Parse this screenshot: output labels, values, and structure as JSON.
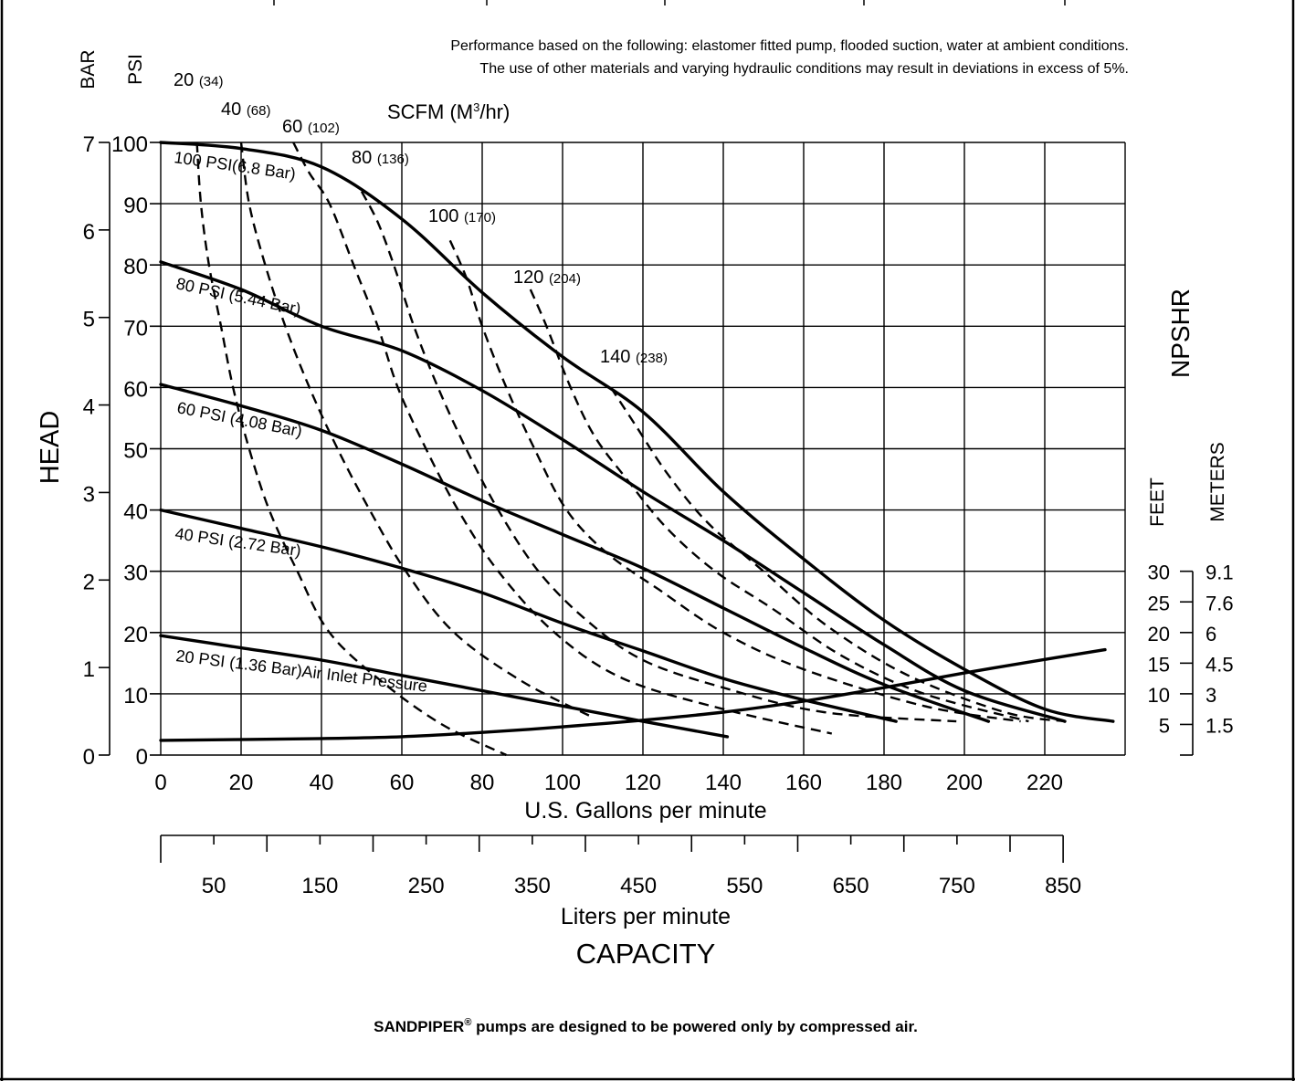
{
  "notes": {
    "line1": "Performance based on the following: elastomer fitted pump, flooded suction, water at ambient conditions.",
    "line2": "The use of other materials and varying hydraulic conditions may result in deviations in excess of 5%."
  },
  "footer": {
    "brand": "SANDPIPER",
    "registered_mark": "®",
    "text": " pumps are designed to be powered only by compressed air."
  },
  "chart_data": {
    "type": "line",
    "title": "",
    "xlabel": "U.S. Gallons per minute",
    "xlabel_secondary": "Liters per minute",
    "capacity_label": "CAPACITY",
    "ylabel": "HEAD",
    "y_unit_left_1": "BAR",
    "y_unit_left_2": "PSI",
    "scfm_label": "SCFM (M³/hr)",
    "npshr_label": "NPSHR",
    "npshr_unit_feet": "FEET",
    "npshr_unit_meters": "METERS",
    "grid": true,
    "xlim": [
      0,
      240
    ],
    "ylim": [
      0,
      100
    ],
    "x_ticks": [
      0,
      20,
      40,
      60,
      80,
      100,
      120,
      140,
      160,
      180,
      200,
      220
    ],
    "y_ticks_psi": [
      0,
      10,
      20,
      30,
      40,
      50,
      60,
      70,
      80,
      90,
      100
    ],
    "y_ticks_bar": [
      0,
      1,
      2,
      3,
      4,
      5,
      6,
      7
    ],
    "lpm_ticks": [
      "50",
      "150",
      "250",
      "350",
      "450",
      "550",
      "650",
      "750",
      "850"
    ],
    "npshr_ticks_feet": [
      "30",
      "25",
      "20",
      "15",
      "10",
      "5"
    ],
    "npshr_ticks_meters": [
      "9.1",
      "7.6",
      "6",
      "4.5",
      "3",
      "1.5"
    ],
    "npshr_scale_feet": [
      0,
      30
    ],
    "series": [
      {
        "name": "100 PSI(6.8 Bar)",
        "style": "solid",
        "points": [
          [
            0,
            100
          ],
          [
            20,
            99
          ],
          [
            40,
            96
          ],
          [
            60,
            87.5
          ],
          [
            80,
            75.5
          ],
          [
            100,
            65
          ],
          [
            120,
            56
          ],
          [
            140,
            43
          ],
          [
            160,
            32
          ],
          [
            180,
            22
          ],
          [
            200,
            14
          ],
          [
            220,
            7.5
          ],
          [
            237,
            5.5
          ]
        ]
      },
      {
        "name": "80 PSI (5.44 Bar)",
        "style": "solid",
        "points": [
          [
            0,
            80.5
          ],
          [
            20,
            76
          ],
          [
            40,
            70
          ],
          [
            60,
            66
          ],
          [
            80,
            59.5
          ],
          [
            100,
            51.5
          ],
          [
            120,
            43
          ],
          [
            140,
            35
          ],
          [
            160,
            26.5
          ],
          [
            180,
            18
          ],
          [
            200,
            10.5
          ],
          [
            225,
            5.5
          ]
        ]
      },
      {
        "name": "60 PSI (4.08 Bar)",
        "style": "solid",
        "points": [
          [
            0,
            60.5
          ],
          [
            20,
            57
          ],
          [
            40,
            53
          ],
          [
            60,
            47.5
          ],
          [
            80,
            41.5
          ],
          [
            100,
            36
          ],
          [
            120,
            30.5
          ],
          [
            140,
            24
          ],
          [
            160,
            17.5
          ],
          [
            180,
            11.5
          ],
          [
            206,
            5.5
          ]
        ]
      },
      {
        "name": "40 PSI (2.72 Bar)",
        "style": "solid",
        "points": [
          [
            0,
            40
          ],
          [
            20,
            37
          ],
          [
            40,
            34
          ],
          [
            60,
            30.5
          ],
          [
            80,
            26.5
          ],
          [
            100,
            21.5
          ],
          [
            120,
            17
          ],
          [
            140,
            12.5
          ],
          [
            160,
            9
          ],
          [
            183,
            5.5
          ]
        ]
      },
      {
        "name": "20 PSI (1.36 Bar)",
        "suffix": "Air Inlet Pressure",
        "style": "solid",
        "points": [
          [
            0,
            19.5
          ],
          [
            20,
            17.5
          ],
          [
            40,
            15.5
          ],
          [
            60,
            13
          ],
          [
            80,
            10.5
          ],
          [
            100,
            8
          ],
          [
            120,
            5.5
          ],
          [
            141,
            3
          ]
        ]
      },
      {
        "name": "NPSHR",
        "style": "solid",
        "axis": "npshr_feet",
        "points": [
          [
            0,
            2.4
          ],
          [
            40,
            2.7
          ],
          [
            60,
            3
          ],
          [
            80,
            3.7
          ],
          [
            100,
            4.6
          ],
          [
            120,
            5.7
          ],
          [
            140,
            7
          ],
          [
            160,
            8.8
          ],
          [
            180,
            11
          ],
          [
            200,
            13.4
          ],
          [
            220,
            15.6
          ],
          [
            235,
            17.2
          ]
        ]
      },
      {
        "name": "20",
        "suffix": "(34)",
        "style": "dashed",
        "points": [
          [
            9,
            100
          ],
          [
            10,
            90
          ],
          [
            12,
            80
          ],
          [
            15,
            70
          ],
          [
            18,
            60
          ],
          [
            22,
            50
          ],
          [
            27,
            40
          ],
          [
            34,
            30
          ],
          [
            42,
            20
          ],
          [
            55,
            12
          ],
          [
            70,
            5
          ],
          [
            86,
            0
          ]
        ]
      },
      {
        "name": "40",
        "suffix": "(68)",
        "style": "dashed",
        "points": [
          [
            20,
            100
          ],
          [
            22,
            90
          ],
          [
            26,
            80
          ],
          [
            31,
            70
          ],
          [
            37,
            60
          ],
          [
            44,
            50
          ],
          [
            52,
            40
          ],
          [
            61,
            30
          ],
          [
            73,
            20
          ],
          [
            90,
            12
          ],
          [
            108,
            6
          ]
        ]
      },
      {
        "name": "60",
        "suffix": "(102)",
        "style": "dashed",
        "points": [
          [
            33,
            100
          ],
          [
            37,
            95
          ],
          [
            42,
            90
          ],
          [
            48,
            80
          ],
          [
            54,
            70
          ],
          [
            59,
            60
          ],
          [
            66,
            50
          ],
          [
            74,
            40
          ],
          [
            84,
            30
          ],
          [
            98,
            20
          ],
          [
            115,
            12.5
          ],
          [
            140,
            7.5
          ],
          [
            167,
            3.5
          ]
        ]
      },
      {
        "name": "80",
        "suffix": "(136)",
        "style": "dashed",
        "points": [
          [
            50,
            92
          ],
          [
            54,
            87
          ],
          [
            58,
            80
          ],
          [
            63,
            70
          ],
          [
            69,
            60
          ],
          [
            76,
            50
          ],
          [
            84,
            40
          ],
          [
            94,
            30
          ],
          [
            106,
            22
          ],
          [
            120,
            15.5
          ],
          [
            140,
            11
          ],
          [
            165,
            7
          ],
          [
            198,
            5.5
          ]
        ]
      },
      {
        "name": "100",
        "suffix": "(170)",
        "style": "dashed",
        "points": [
          [
            72,
            84
          ],
          [
            76,
            78
          ],
          [
            80,
            70
          ],
          [
            86,
            60
          ],
          [
            93,
            50
          ],
          [
            101,
            40
          ],
          [
            111,
            33
          ],
          [
            124,
            27
          ],
          [
            140,
            20
          ],
          [
            160,
            14
          ],
          [
            190,
            8
          ],
          [
            214,
            5.5
          ]
        ]
      },
      {
        "name": "120",
        "suffix": "(204)",
        "style": "dashed",
        "points": [
          [
            92,
            76
          ],
          [
            96,
            70
          ],
          [
            102,
            60
          ],
          [
            108,
            52
          ],
          [
            116,
            45
          ],
          [
            126,
            37
          ],
          [
            138,
            30
          ],
          [
            152,
            24
          ],
          [
            170,
            16
          ],
          [
            190,
            10
          ],
          [
            216,
            5.5
          ]
        ]
      },
      {
        "name": "140",
        "suffix": "(238)",
        "style": "dashed",
        "points": [
          [
            112,
            60
          ],
          [
            118,
            54
          ],
          [
            126,
            46
          ],
          [
            136,
            38
          ],
          [
            150,
            30
          ],
          [
            166,
            21
          ],
          [
            186,
            13
          ],
          [
            210,
            7
          ],
          [
            225,
            5.5
          ]
        ]
      }
    ]
  }
}
